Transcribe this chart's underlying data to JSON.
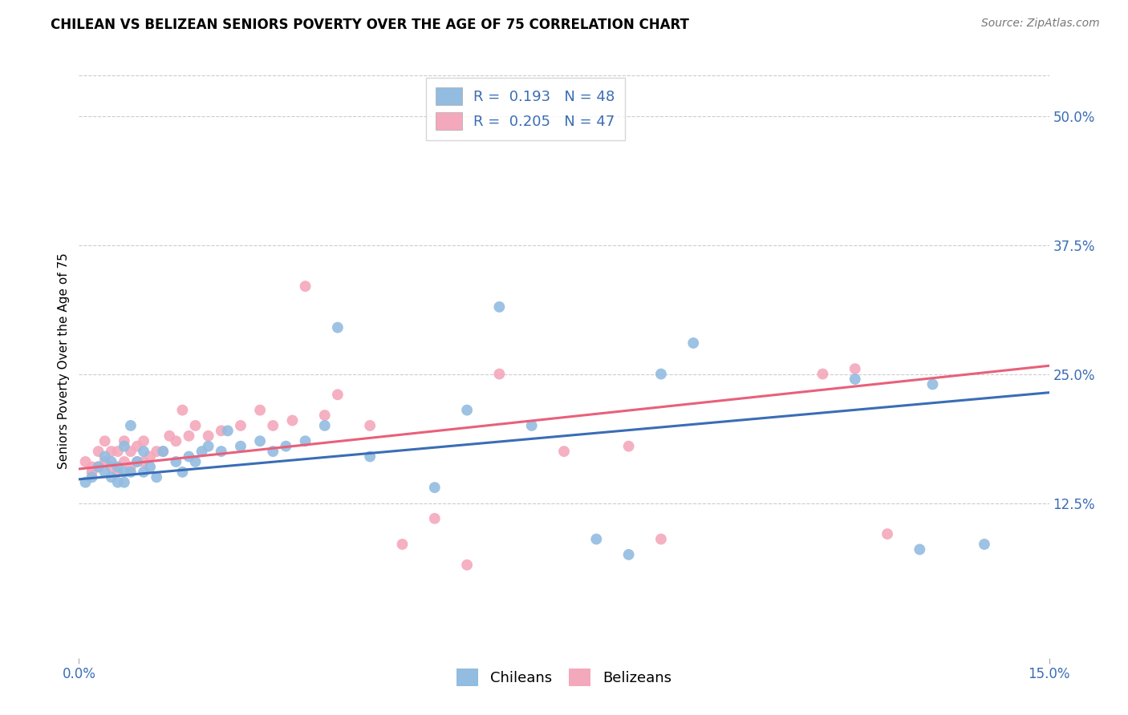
{
  "title": "CHILEAN VS BELIZEAN SENIORS POVERTY OVER THE AGE OF 75 CORRELATION CHART",
  "source": "Source: ZipAtlas.com",
  "ylabel": "Seniors Poverty Over the Age of 75",
  "xlim": [
    0.0,
    0.15
  ],
  "ylim": [
    -0.025,
    0.55
  ],
  "yticks": [
    0.125,
    0.25,
    0.375,
    0.5
  ],
  "ytick_labels": [
    "12.5%",
    "25.0%",
    "37.5%",
    "50.0%"
  ],
  "chilean_color": "#92bce0",
  "belizean_color": "#f4a8bc",
  "chilean_line_color": "#3a6db5",
  "belizean_line_color": "#e8607a",
  "R_chilean": 0.193,
  "N_chilean": 48,
  "R_belizean": 0.205,
  "N_belizean": 47,
  "background_color": "#ffffff",
  "grid_color": "#cccccc",
  "chilean_x": [
    0.001,
    0.002,
    0.003,
    0.004,
    0.004,
    0.005,
    0.005,
    0.006,
    0.006,
    0.007,
    0.007,
    0.007,
    0.008,
    0.008,
    0.009,
    0.01,
    0.01,
    0.011,
    0.012,
    0.013,
    0.015,
    0.016,
    0.017,
    0.018,
    0.019,
    0.02,
    0.022,
    0.023,
    0.025,
    0.028,
    0.03,
    0.032,
    0.035,
    0.038,
    0.04,
    0.045,
    0.055,
    0.06,
    0.065,
    0.07,
    0.08,
    0.085,
    0.09,
    0.095,
    0.12,
    0.13,
    0.132,
    0.14
  ],
  "chilean_y": [
    0.145,
    0.15,
    0.16,
    0.155,
    0.17,
    0.15,
    0.165,
    0.145,
    0.16,
    0.145,
    0.155,
    0.18,
    0.155,
    0.2,
    0.165,
    0.155,
    0.175,
    0.16,
    0.15,
    0.175,
    0.165,
    0.155,
    0.17,
    0.165,
    0.175,
    0.18,
    0.175,
    0.195,
    0.18,
    0.185,
    0.175,
    0.18,
    0.185,
    0.2,
    0.295,
    0.17,
    0.14,
    0.215,
    0.315,
    0.2,
    0.09,
    0.075,
    0.25,
    0.28,
    0.245,
    0.08,
    0.24,
    0.085
  ],
  "belizean_x": [
    0.001,
    0.002,
    0.002,
    0.003,
    0.003,
    0.004,
    0.004,
    0.005,
    0.005,
    0.006,
    0.006,
    0.007,
    0.007,
    0.008,
    0.008,
    0.009,
    0.009,
    0.01,
    0.01,
    0.011,
    0.012,
    0.013,
    0.014,
    0.015,
    0.016,
    0.017,
    0.018,
    0.02,
    0.022,
    0.025,
    0.028,
    0.03,
    0.033,
    0.035,
    0.038,
    0.04,
    0.045,
    0.05,
    0.055,
    0.06,
    0.065,
    0.075,
    0.085,
    0.09,
    0.115,
    0.12,
    0.125
  ],
  "belizean_y": [
    0.165,
    0.16,
    0.155,
    0.16,
    0.175,
    0.165,
    0.185,
    0.16,
    0.175,
    0.155,
    0.175,
    0.165,
    0.185,
    0.16,
    0.175,
    0.165,
    0.18,
    0.165,
    0.185,
    0.17,
    0.175,
    0.175,
    0.19,
    0.185,
    0.215,
    0.19,
    0.2,
    0.19,
    0.195,
    0.2,
    0.215,
    0.2,
    0.205,
    0.335,
    0.21,
    0.23,
    0.2,
    0.085,
    0.11,
    0.065,
    0.25,
    0.175,
    0.18,
    0.09,
    0.25,
    0.255,
    0.095
  ],
  "chilean_line_x": [
    0.0,
    0.15
  ],
  "chilean_line_y": [
    0.148,
    0.232
  ],
  "belizean_line_x": [
    0.0,
    0.15
  ],
  "belizean_line_y": [
    0.158,
    0.258
  ],
  "legend1_label": "R =  0.193   N = 48",
  "legend2_label": "R =  0.205   N = 47",
  "bottom_legend_labels": [
    "Chileans",
    "Belizeans"
  ],
  "title_fontsize": 12,
  "axis_tick_fontsize": 12,
  "legend_fontsize": 13
}
